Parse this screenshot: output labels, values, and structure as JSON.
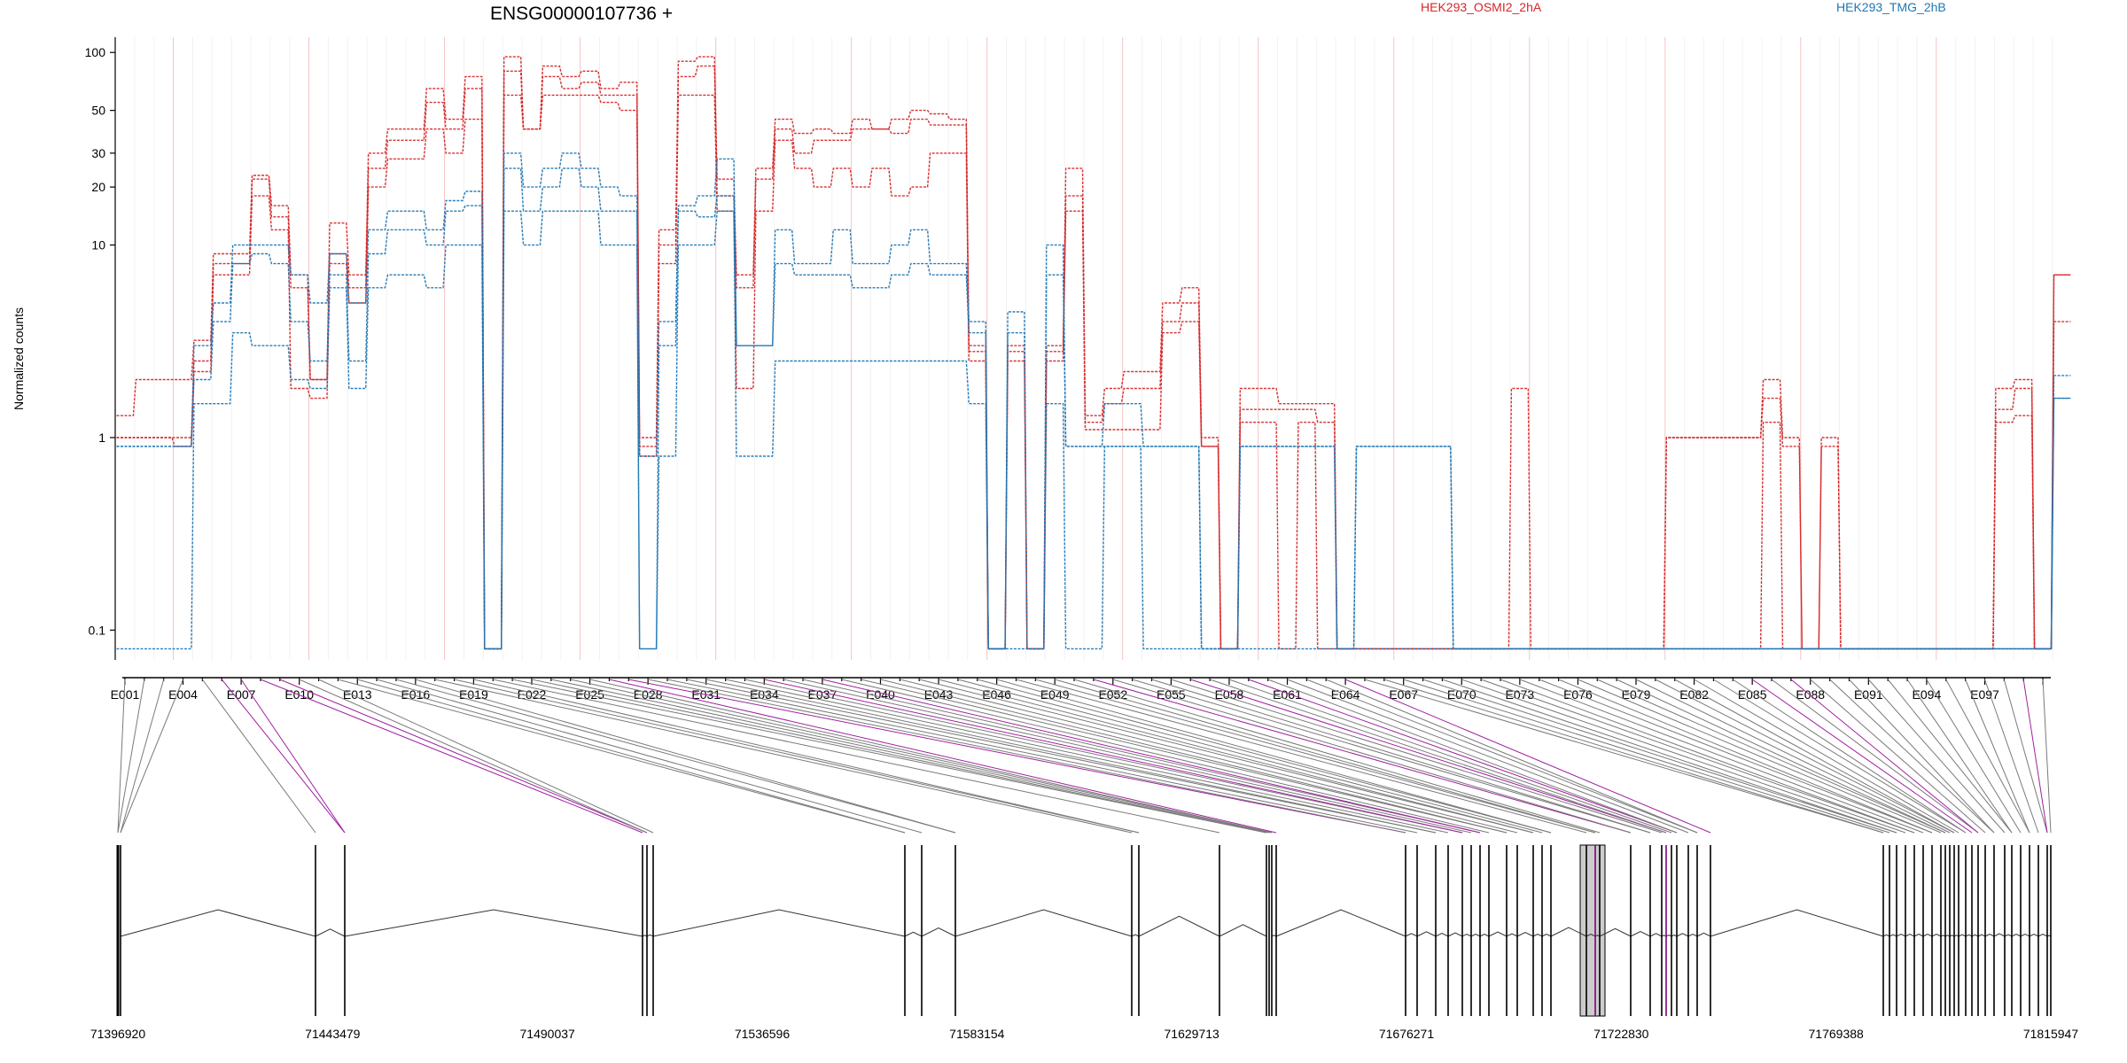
{
  "chart_data": {
    "type": "line",
    "title": "ENSG00000107736 +",
    "ylabel": "Normalized counts",
    "yscale": "log",
    "ylim": [
      0.07,
      120
    ],
    "yticks": [
      0.1,
      1,
      10,
      20,
      30,
      50,
      100
    ],
    "ytick_labels": [
      "0.1",
      "1",
      "10",
      "20",
      "30",
      "50",
      "100"
    ],
    "legend": [
      {
        "name": "HEK293_OSMI2_2hA",
        "color": "#d62728"
      },
      {
        "name": "HEK293_TMG_2hB",
        "color": "#1f77b4"
      }
    ],
    "exon_count": 100,
    "exon_tick_labels": [
      "E001",
      "E004",
      "E007",
      "E010",
      "E013",
      "E016",
      "E019",
      "E022",
      "E025",
      "E028",
      "E031",
      "E034",
      "E037",
      "E040",
      "E043",
      "E046",
      "E049",
      "E052",
      "E055",
      "E058",
      "E061",
      "E064",
      "E067",
      "E070",
      "E073",
      "E076",
      "E079",
      "E082",
      "E085",
      "E088",
      "E091",
      "E094",
      "E097"
    ],
    "series": [
      {
        "name": "HEK293_OSMI2_2hA",
        "group": "HEK293_OSMI2_2hA",
        "color": "#d62728",
        "values": [
          1.3,
          2,
          2,
          2,
          3.2,
          9,
          9,
          23,
          16,
          7,
          2,
          13,
          7,
          30,
          40,
          40,
          65,
          45,
          75,
          0.08,
          95,
          40,
          85,
          75,
          80,
          65,
          70,
          1,
          12,
          90,
          95,
          22,
          7,
          25,
          45,
          38,
          40,
          38,
          45,
          40,
          45,
          50,
          48,
          45,
          3,
          0.08,
          3,
          0.08,
          3,
          25,
          1.3,
          1.8,
          2.2,
          2.2,
          5,
          6,
          1,
          0.08,
          1.8,
          1.8,
          1.5,
          1.5,
          1.5,
          0.08,
          0.08,
          0.08,
          0.08,
          0.08,
          0.08,
          0.08,
          0.08,
          0.08,
          1.8,
          0.08,
          0.08,
          0.08,
          0.08,
          0.08,
          0.08,
          0.08,
          1,
          1,
          1,
          1,
          1,
          2,
          1,
          0.08,
          1,
          0.08,
          0.08,
          0.08,
          0.08,
          0.08,
          0.08,
          0.08,
          0.08,
          1.8,
          2,
          0.08,
          7
        ]
      },
      {
        "name": "HEK293_OSMI2_2hA",
        "group": "HEK293_OSMI2_2hA",
        "color": "#d62728",
        "values": [
          1,
          1,
          1,
          1,
          2.5,
          8,
          8,
          22,
          14,
          6,
          2,
          9,
          6,
          25,
          35,
          35,
          55,
          40,
          65,
          0.08,
          80,
          40,
          75,
          65,
          70,
          60,
          60,
          0.9,
          10,
          75,
          85,
          18,
          6,
          22,
          40,
          30,
          35,
          35,
          40,
          40,
          38,
          45,
          42,
          42,
          2.8,
          0.08,
          2.8,
          0.08,
          2.8,
          18,
          1.2,
          1.5,
          1.8,
          1.8,
          4,
          5,
          0.9,
          0.08,
          1.4,
          1.4,
          1.4,
          1.4,
          1.2,
          0.08,
          0.08,
          0.08,
          0.08,
          0.08,
          0.08,
          0.08,
          0.08,
          0.08,
          0.08,
          0.08,
          0.08,
          0.08,
          0.08,
          0.08,
          0.08,
          0.08,
          1,
          1,
          1,
          1,
          1,
          1.6,
          0.9,
          0.08,
          0.9,
          0.08,
          0.08,
          0.08,
          0.08,
          0.08,
          0.08,
          0.08,
          0.08,
          1.4,
          1.8,
          0.08,
          7
        ]
      },
      {
        "name": "HEK293_OSMI2_2hA",
        "group": "HEK293_OSMI2_2hA",
        "color": "#d62728",
        "values": [
          1,
          1,
          1,
          0.9,
          2.2,
          7,
          7,
          18,
          12,
          1.8,
          1.6,
          8,
          5,
          20,
          28,
          28,
          40,
          30,
          45,
          0.08,
          60,
          40,
          60,
          60,
          60,
          55,
          50,
          0.8,
          8,
          60,
          60,
          15,
          1.8,
          15,
          35,
          25,
          20,
          25,
          20,
          25,
          18,
          20,
          30,
          30,
          2.5,
          0.08,
          2.5,
          0.08,
          2.5,
          15,
          1.1,
          1.1,
          1.1,
          1.1,
          3.5,
          4,
          0.9,
          0.08,
          1.2,
          1.2,
          0.08,
          1.2,
          0.08,
          0.08,
          0.08,
          0.08,
          0.08,
          0.08,
          0.08,
          0.08,
          0.08,
          0.08,
          0.08,
          0.08,
          0.08,
          0.08,
          0.08,
          0.08,
          0.08,
          0.08,
          0.08,
          0.08,
          0.08,
          0.08,
          0.08,
          1.2,
          0.08,
          0.08,
          0.08,
          0.08,
          0.08,
          0.08,
          0.08,
          0.08,
          0.08,
          0.08,
          0.08,
          1.2,
          1.3,
          0.08,
          4
        ]
      },
      {
        "name": "HEK293_TMG_2hB",
        "group": "HEK293_TMG_2hB",
        "color": "#1f77b4",
        "values": [
          0.9,
          0.9,
          0.9,
          0.9,
          3,
          5,
          10,
          10,
          10,
          7,
          5,
          9,
          5,
          12,
          15,
          15,
          12,
          17,
          19,
          0.08,
          30,
          20,
          25,
          30,
          25,
          20,
          18,
          0.8,
          4,
          16,
          18,
          28,
          3,
          3,
          12,
          8,
          8,
          12,
          8,
          8,
          10,
          12,
          8,
          8,
          4,
          0.08,
          4.5,
          0.08,
          10,
          0.9,
          0.9,
          0.9,
          0.9,
          0.9,
          0.9,
          0.9,
          0.08,
          0.08,
          0.9,
          0.9,
          0.9,
          0.9,
          0.9,
          0.08,
          0.9,
          0.9,
          0.9,
          0.9,
          0.9,
          0.08,
          0.08,
          0.08,
          0.08,
          0.08,
          0.08,
          0.08,
          0.08,
          0.08,
          0.08,
          0.08,
          0.08,
          0.08,
          0.08,
          0.08,
          0.08,
          0.08,
          0.08,
          0.08,
          0.08,
          0.08,
          0.08,
          0.08,
          0.08,
          0.08,
          0.08,
          0.08,
          0.08,
          0.08,
          0.08,
          0.08,
          1.6
        ]
      },
      {
        "name": "HEK293_TMG_2hB",
        "group": "HEK293_TMG_2hB",
        "color": "#1f77b4",
        "values": [
          0.9,
          0.9,
          0.9,
          0.9,
          2,
          4,
          8,
          9,
          8,
          4,
          2.5,
          7,
          2.5,
          9,
          12,
          12,
          10,
          15,
          16,
          0.08,
          25,
          15,
          20,
          25,
          20,
          15,
          15,
          0.08,
          3,
          15,
          14,
          18,
          3,
          3,
          8,
          7,
          7,
          7,
          6,
          6,
          7,
          8,
          7,
          7,
          3.5,
          0.08,
          3.5,
          0.08,
          7,
          0.9,
          0.9,
          1.5,
          1.5,
          0.9,
          0.9,
          0.9,
          0.08,
          0.08,
          0.9,
          0.9,
          0.9,
          0.9,
          0.9,
          0.08,
          0.9,
          0.9,
          0.9,
          0.9,
          0.9,
          0.08,
          0.08,
          0.08,
          0.08,
          0.08,
          0.08,
          0.08,
          0.08,
          0.08,
          0.08,
          0.08,
          0.08,
          0.08,
          0.08,
          0.08,
          0.08,
          0.08,
          0.08,
          0.08,
          0.08,
          0.08,
          0.08,
          0.08,
          0.08,
          0.08,
          0.08,
          0.08,
          0.08,
          0.08,
          0.08,
          0.08,
          2.1
        ]
      },
      {
        "name": "HEK293_TMG_2hB",
        "group": "HEK293_TMG_2hB",
        "color": "#1f77b4",
        "values": [
          0.08,
          0.08,
          0.08,
          0.08,
          1.5,
          1.5,
          3.5,
          3,
          3,
          2,
          1.8,
          6,
          1.8,
          6,
          7,
          7,
          6,
          10,
          10,
          0.08,
          15,
          10,
          15,
          15,
          15,
          10,
          10,
          0.08,
          0.8,
          10,
          10,
          15,
          0.8,
          0.8,
          2.5,
          2.5,
          2.5,
          2.5,
          2.5,
          2.5,
          2.5,
          2.5,
          2.5,
          2.5,
          1.5,
          0.08,
          0.08,
          0.08,
          1.5,
          0.08,
          0.08,
          0.9,
          0.9,
          0.08,
          0.08,
          0.08,
          0.08,
          0.08,
          0.08,
          0.08,
          0.08,
          0.08,
          0.08,
          0.08,
          0.08,
          0.08,
          0.08,
          0.08,
          0.08,
          0.08,
          0.08,
          0.08,
          0.08,
          0.08,
          0.08,
          0.08,
          0.08,
          0.08,
          0.08,
          0.08,
          0.08,
          0.08,
          0.08,
          0.08,
          0.08,
          0.08,
          0.08,
          0.08,
          0.08,
          0.08,
          0.08,
          0.08,
          0.08,
          0.08,
          0.08,
          0.08,
          0.08,
          0.08,
          0.08,
          0.08,
          1.6
        ]
      }
    ],
    "genomic_ticks": [
      "71396920",
      "71443479",
      "71490037",
      "71536596",
      "71583154",
      "71629713",
      "71676271",
      "71722830",
      "71769388",
      "71815947"
    ]
  }
}
